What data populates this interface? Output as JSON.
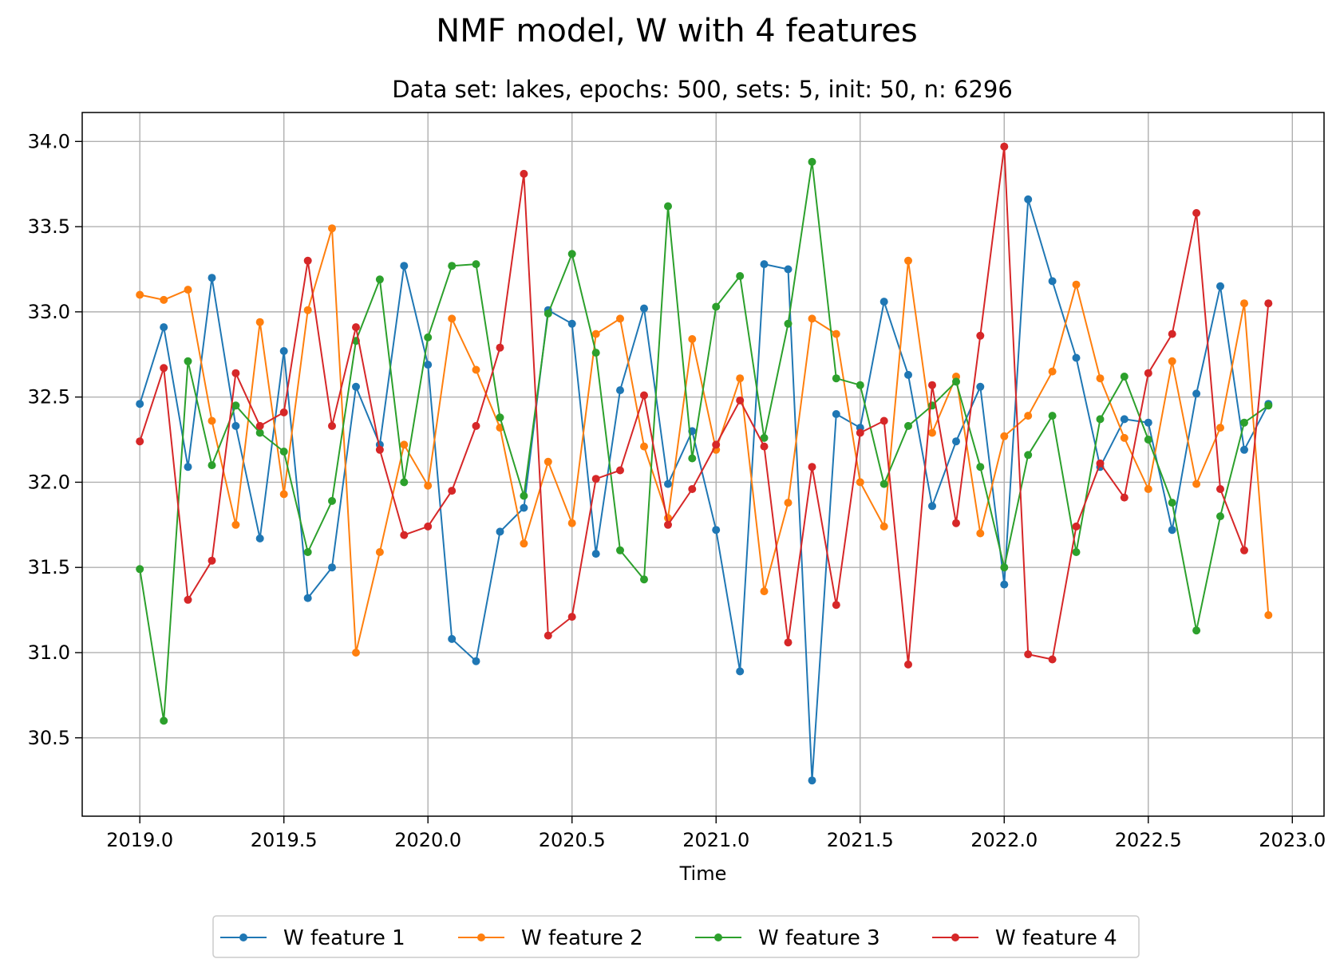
{
  "chart_data": {
    "type": "line",
    "title": "NMF model, W with 4 features",
    "subtitle": "Data set: lakes, epochs: 500, sets: 5, init: 50, n: 6296",
    "xlabel": "Time",
    "ylabel": "",
    "xlim": [
      2018.8,
      2023.11
    ],
    "ylim": [
      30.04,
      34.17
    ],
    "xticks": [
      2019.0,
      2019.5,
      2020.0,
      2020.5,
      2021.0,
      2021.5,
      2022.0,
      2022.5,
      2023.0
    ],
    "xtick_labels": [
      "2019.0",
      "2019.5",
      "2020.0",
      "2020.5",
      "2021.0",
      "2021.5",
      "2022.0",
      "2022.5",
      "2023.0"
    ],
    "yticks": [
      30.5,
      31.0,
      31.5,
      32.0,
      32.5,
      33.0,
      33.5,
      34.0
    ],
    "ytick_labels": [
      "30.5",
      "31.0",
      "31.5",
      "32.0",
      "32.5",
      "33.0",
      "33.5",
      "34.0"
    ],
    "grid": true,
    "legend_position": "bottom-center",
    "x": [
      2019.0,
      2019.083,
      2019.167,
      2019.25,
      2019.333,
      2019.417,
      2019.5,
      2019.583,
      2019.667,
      2019.75,
      2019.833,
      2019.917,
      2020.0,
      2020.083,
      2020.167,
      2020.25,
      2020.333,
      2020.417,
      2020.5,
      2020.583,
      2020.667,
      2020.75,
      2020.833,
      2020.917,
      2021.0,
      2021.083,
      2021.167,
      2021.25,
      2021.333,
      2021.417,
      2021.5,
      2021.583,
      2021.667,
      2021.75,
      2021.833,
      2021.917,
      2022.0,
      2022.083,
      2022.167,
      2022.25,
      2022.333,
      2022.417,
      2022.5,
      2022.583,
      2022.667,
      2022.75,
      2022.833,
      2022.917
    ],
    "series": [
      {
        "name": "W feature 1",
        "color": "#1f77b4",
        "values": [
          32.46,
          32.91,
          32.09,
          33.2,
          32.33,
          31.67,
          32.77,
          31.32,
          31.5,
          32.56,
          32.22,
          33.27,
          32.69,
          31.08,
          30.95,
          31.71,
          31.85,
          33.01,
          32.93,
          31.58,
          32.54,
          33.02,
          31.99,
          32.3,
          31.72,
          30.89,
          33.28,
          33.25,
          30.25,
          32.4,
          32.32,
          33.06,
          32.63,
          31.86,
          32.24,
          32.56,
          31.4,
          33.66,
          33.18,
          32.73,
          32.09,
          32.37,
          32.35,
          31.72,
          32.52,
          33.15,
          32.19,
          32.46
        ]
      },
      {
        "name": "W feature 2",
        "color": "#ff7f0e",
        "values": [
          33.1,
          33.07,
          33.13,
          32.36,
          31.75,
          32.94,
          31.93,
          33.01,
          33.49,
          31.0,
          31.59,
          32.22,
          31.98,
          32.96,
          32.66,
          32.32,
          31.64,
          32.12,
          31.76,
          32.87,
          32.96,
          32.21,
          31.79,
          32.84,
          32.19,
          32.61,
          31.36,
          31.88,
          32.96,
          32.87,
          32.0,
          31.74,
          33.3,
          32.29,
          32.62,
          31.7,
          32.27,
          32.39,
          32.65,
          33.16,
          32.61,
          32.26,
          31.96,
          32.71,
          31.99,
          32.32,
          33.05,
          31.22
        ]
      },
      {
        "name": "W feature 3",
        "color": "#2ca02c",
        "values": [
          31.49,
          30.6,
          32.71,
          32.1,
          32.45,
          32.29,
          32.18,
          31.59,
          31.89,
          32.83,
          33.19,
          32.0,
          32.85,
          33.27,
          33.28,
          32.38,
          31.92,
          32.99,
          33.34,
          32.76,
          31.6,
          31.43,
          33.62,
          32.14,
          33.03,
          33.21,
          32.26,
          32.93,
          33.88,
          32.61,
          32.57,
          31.99,
          32.33,
          32.45,
          32.59,
          32.09,
          31.5,
          32.16,
          32.39,
          31.59,
          32.37,
          32.62,
          32.25,
          31.88,
          31.13,
          31.8,
          32.35,
          32.45
        ]
      },
      {
        "name": "W feature 4",
        "color": "#d62728",
        "values": [
          32.24,
          32.67,
          31.31,
          31.54,
          32.64,
          32.33,
          32.41,
          33.3,
          32.33,
          32.91,
          32.19,
          31.69,
          31.74,
          31.95,
          32.33,
          32.79,
          33.81,
          31.1,
          31.21,
          32.02,
          32.07,
          32.51,
          31.75,
          31.96,
          32.22,
          32.48,
          32.21,
          31.06,
          32.09,
          31.28,
          32.29,
          32.36,
          30.93,
          32.57,
          31.76,
          32.86,
          33.97,
          30.99,
          30.96,
          31.74,
          32.11,
          31.91,
          32.64,
          32.87,
          33.58,
          31.96,
          31.6,
          33.05
        ]
      }
    ]
  }
}
